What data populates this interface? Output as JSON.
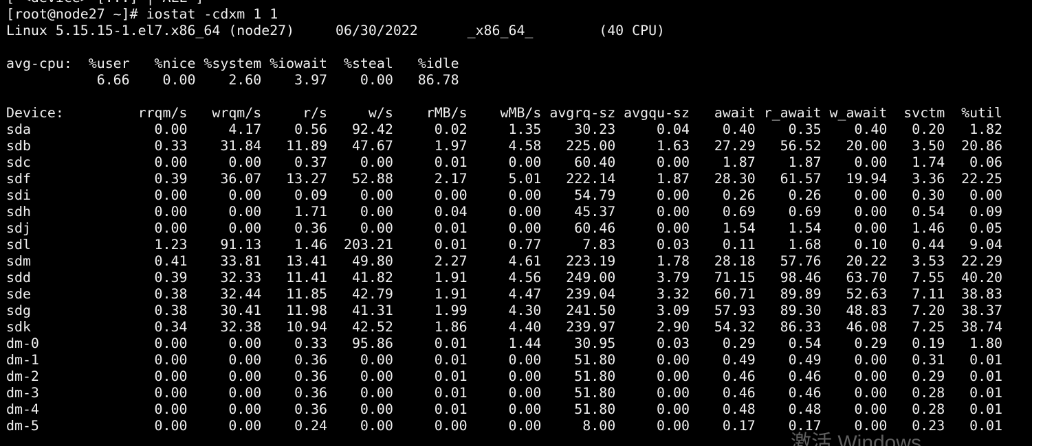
{
  "terminal": {
    "lines": [
      "[ <device> [...] | ALL ]",
      "[root@node27 ~]# iostat -cdxm 1 1",
      "Linux 5.15.15-1.el7.x86_64 (node27)     06/30/2022      _x86_64_        (40 CPU)",
      "",
      "avg-cpu:  %user   %nice %system %iowait  %steal   %idle",
      "           6.66    0.00    2.60    3.97    0.00   86.78",
      "",
      "Device:         rrqm/s   wrqm/s     r/s     w/s    rMB/s    wMB/s avgrq-sz avgqu-sz   await r_await w_await  svctm  %util",
      "sda               0.00     4.17    0.56   92.42     0.02     1.35    30.23     0.04    0.40    0.35    0.40   0.20   1.82",
      "sdb               0.33    31.84   11.89   47.67     1.97     4.58   225.00     1.63   27.29   56.52   20.00   3.50  20.86",
      "sdc               0.00     0.00    0.37    0.00     0.01     0.00    60.40     0.00    1.87    1.87    0.00   1.74   0.06",
      "sdf               0.39    36.07   13.27   52.88     2.17     5.01   222.14     1.87   28.30   61.57   19.94   3.36  22.25",
      "sdi               0.00     0.00    0.09    0.00     0.00     0.00    54.79     0.00    0.26    0.26    0.00   0.30   0.00",
      "sdh               0.00     0.00    1.71    0.00     0.04     0.00    45.37     0.00    0.69    0.69    0.00   0.54   0.09",
      "sdj               0.00     0.00    0.36    0.00     0.01     0.00    60.46     0.00    1.54    1.54    0.00   1.46   0.05",
      "sdl               1.23    91.13    1.46  203.21     0.01     0.77     7.83     0.03    0.11    1.68    0.10   0.44   9.04",
      "sdm               0.41    33.81   13.41   49.80     2.27     4.61   223.19     1.78   28.18   57.76   20.22   3.53  22.29",
      "sdd               0.39    32.33   11.41   41.82     1.91     4.56   249.00     3.79   71.15   98.46   63.70   7.55  40.20",
      "sde               0.38    32.44   11.85   42.79     1.91     4.47   239.04     3.32   60.71   89.89   52.63   7.11  38.83",
      "sdg               0.38    30.41   11.98   41.31     1.99     4.30   241.50     3.09   57.93   89.30   48.83   7.20  38.37",
      "sdk               0.34    32.38   10.94   42.52     1.86     4.40   239.97     2.90   54.32   86.33   46.08   7.25  38.74",
      "dm-0              0.00     0.00    0.33   95.86     0.01     1.44    30.95     0.03    0.29    0.54    0.29   0.19   1.80",
      "dm-1              0.00     0.00    0.36    0.00     0.01     0.00    51.80     0.00    0.49    0.49    0.00   0.31   0.01",
      "dm-2              0.00     0.00    0.36    0.00     0.01     0.00    51.80     0.00    0.46    0.46    0.00   0.29   0.01",
      "dm-3              0.00     0.00    0.36    0.00     0.01     0.00    51.80     0.00    0.46    0.46    0.00   0.28   0.01",
      "dm-4              0.00     0.00    0.36    0.00     0.01     0.00    51.80     0.00    0.48    0.48    0.00   0.28   0.01",
      "dm-5              0.00     0.00    0.24    0.00     0.00     0.00     8.00     0.00    0.17    0.17    0.00   0.23   0.01"
    ],
    "colors": {
      "background": "#000000",
      "foreground": "#f0f0f0"
    }
  },
  "watermark": "激活 Windows"
}
